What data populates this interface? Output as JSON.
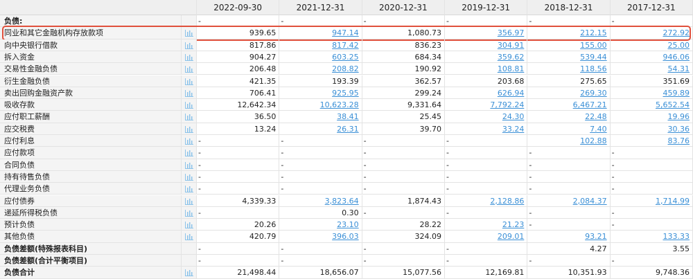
{
  "table": {
    "columns": [
      "2022-09-30",
      "2021-12-31",
      "2020-12-31",
      "2019-12-31",
      "2018-12-31",
      "2017-12-31"
    ],
    "rows": [
      {
        "label": "负债:",
        "bold": true,
        "icon": false,
        "values": [
          "-",
          "-",
          "-",
          "-",
          "-",
          "-"
        ],
        "links": [
          false,
          false,
          false,
          false,
          false,
          false
        ]
      },
      {
        "label": "同业和其它金融机构存放款项",
        "highlight": true,
        "icon": true,
        "values": [
          "939.65",
          "947.14",
          "1,080.73",
          "356.97",
          "212.15",
          "272.92"
        ],
        "links": [
          false,
          true,
          false,
          true,
          true,
          true
        ]
      },
      {
        "label": "向中央银行借款",
        "icon": true,
        "values": [
          "817.86",
          "817.42",
          "836.23",
          "304.91",
          "155.00",
          "25.00"
        ],
        "links": [
          false,
          true,
          false,
          true,
          true,
          true
        ]
      },
      {
        "label": "拆入资金",
        "icon": true,
        "values": [
          "904.27",
          "603.25",
          "684.34",
          "359.62",
          "539.44",
          "946.06"
        ],
        "links": [
          false,
          true,
          false,
          true,
          true,
          true
        ]
      },
      {
        "label": "交易性金融负债",
        "icon": true,
        "values": [
          "206.48",
          "208.82",
          "190.92",
          "108.81",
          "118.56",
          "54.31"
        ],
        "links": [
          false,
          true,
          false,
          true,
          true,
          true
        ]
      },
      {
        "label": "衍生金融负债",
        "icon": true,
        "values": [
          "421.35",
          "193.39",
          "362.57",
          "203.68",
          "275.65",
          "351.69"
        ],
        "links": [
          false,
          false,
          false,
          false,
          false,
          false
        ]
      },
      {
        "label": "卖出回购金融资产款",
        "icon": true,
        "values": [
          "706.41",
          "925.95",
          "299.24",
          "626.94",
          "269.30",
          "459.89"
        ],
        "links": [
          false,
          true,
          false,
          true,
          true,
          true
        ]
      },
      {
        "label": "吸收存款",
        "icon": true,
        "values": [
          "12,642.34",
          "10,623.28",
          "9,331.64",
          "7,792.24",
          "6,467.21",
          "5,652.54"
        ],
        "links": [
          false,
          true,
          false,
          true,
          true,
          true
        ]
      },
      {
        "label": "应付职工薪酬",
        "icon": true,
        "values": [
          "36.50",
          "38.41",
          "25.45",
          "24.30",
          "22.48",
          "19.96"
        ],
        "links": [
          false,
          true,
          false,
          true,
          true,
          true
        ]
      },
      {
        "label": "应交税费",
        "icon": true,
        "values": [
          "13.24",
          "26.31",
          "39.70",
          "33.24",
          "7.40",
          "30.36"
        ],
        "links": [
          false,
          true,
          false,
          true,
          true,
          true
        ]
      },
      {
        "label": "应付利息",
        "icon": true,
        "values": [
          "-",
          "-",
          "-",
          "-",
          "102.88",
          "83.76"
        ],
        "links": [
          false,
          false,
          false,
          false,
          true,
          true
        ]
      },
      {
        "label": "应付款项",
        "icon": true,
        "values": [
          "-",
          "-",
          "-",
          "-",
          "-",
          "-"
        ],
        "links": [
          false,
          false,
          false,
          false,
          false,
          false
        ]
      },
      {
        "label": "合同负债",
        "icon": true,
        "values": [
          "-",
          "-",
          "-",
          "-",
          "-",
          "-"
        ],
        "links": [
          false,
          false,
          false,
          false,
          false,
          false
        ]
      },
      {
        "label": "持有待售负债",
        "icon": true,
        "values": [
          "-",
          "-",
          "-",
          "-",
          "-",
          "-"
        ],
        "links": [
          false,
          false,
          false,
          false,
          false,
          false
        ]
      },
      {
        "label": "代理业务负债",
        "icon": true,
        "values": [
          "-",
          "-",
          "-",
          "-",
          "-",
          "-"
        ],
        "links": [
          false,
          false,
          false,
          false,
          false,
          false
        ]
      },
      {
        "label": "应付债券",
        "icon": true,
        "values": [
          "4,339.33",
          "3,823.64",
          "1,874.43",
          "2,128.86",
          "2,084.37",
          "1,714.99"
        ],
        "links": [
          false,
          true,
          false,
          true,
          true,
          true
        ]
      },
      {
        "label": "递延所得税负债",
        "icon": true,
        "values": [
          "-",
          "0.30",
          "-",
          "-",
          "-",
          "-"
        ],
        "links": [
          false,
          false,
          false,
          false,
          false,
          false
        ]
      },
      {
        "label": "预计负债",
        "icon": true,
        "values": [
          "20.26",
          "23.10",
          "28.22",
          "21.23",
          "-",
          "-"
        ],
        "links": [
          false,
          true,
          false,
          true,
          false,
          false
        ]
      },
      {
        "label": "其他负债",
        "icon": true,
        "values": [
          "420.79",
          "396.03",
          "324.09",
          "209.01",
          "93.21",
          "133.33"
        ],
        "links": [
          false,
          true,
          false,
          true,
          true,
          true
        ]
      },
      {
        "label": "负债差额(特殊报表科目)",
        "bold": true,
        "icon": false,
        "values": [
          "-",
          "-",
          "-",
          "-",
          "4.27",
          "3.55"
        ],
        "links": [
          false,
          false,
          false,
          false,
          false,
          false
        ]
      },
      {
        "label": "负债差额(合计平衡项目)",
        "bold": true,
        "icon": false,
        "values": [
          "-",
          "-",
          "-",
          "-",
          "-",
          "-"
        ],
        "links": [
          false,
          false,
          false,
          false,
          false,
          false
        ]
      },
      {
        "label": "负债合计",
        "bold": true,
        "icon": true,
        "values": [
          "21,498.44",
          "18,656.07",
          "15,077.56",
          "12,169.81",
          "10,351.93",
          "9,748.36"
        ],
        "links": [
          false,
          false,
          false,
          false,
          false,
          false
        ]
      }
    ]
  }
}
